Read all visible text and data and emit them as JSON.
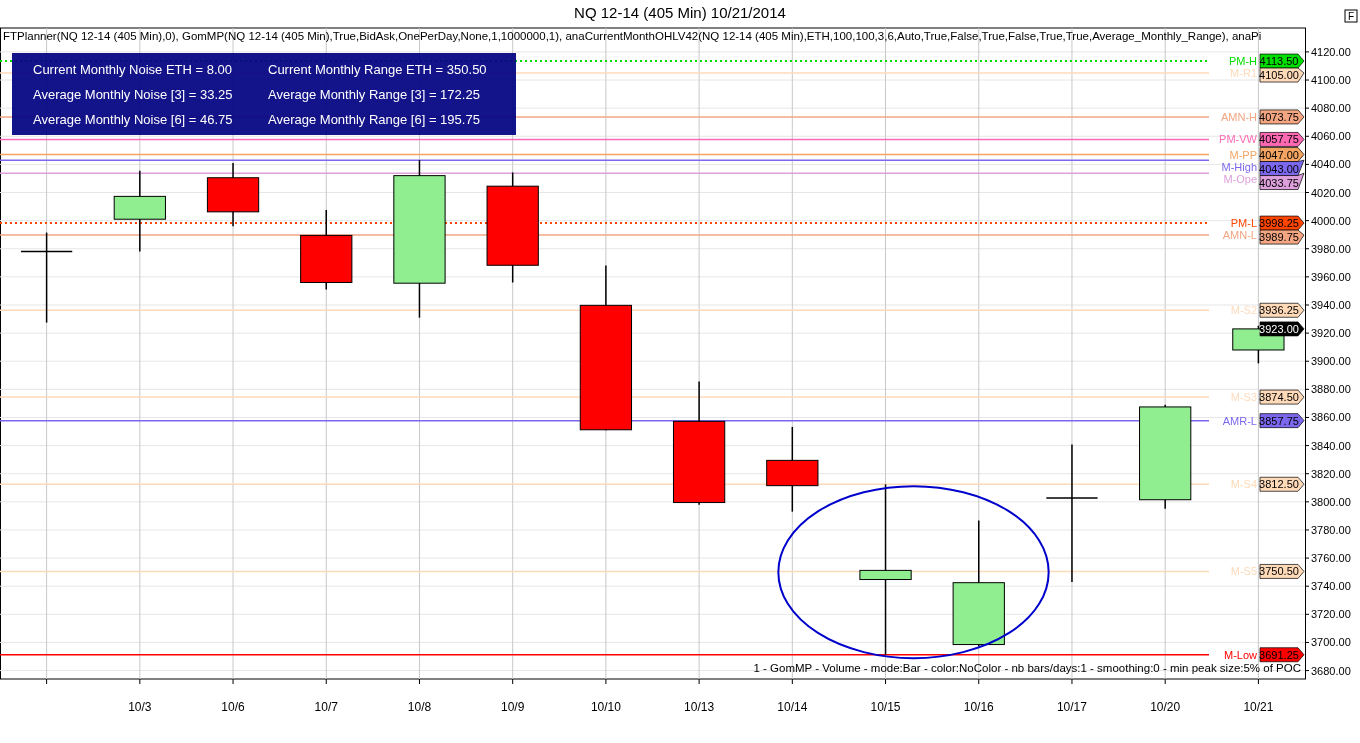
{
  "chart_data": {
    "type": "candlestick",
    "title": "NQ 12-14 (405 Min)  10/21/2014",
    "categories": [
      null,
      "10/3",
      "10/6",
      "10/7",
      "10/8",
      "10/9",
      "10/10",
      "10/13",
      "10/14",
      "10/15",
      "10/16",
      "10/17",
      "10/20",
      "10/21"
    ],
    "ohlc": [
      [
        3978,
        3991.5,
        3927.5,
        3978
      ],
      [
        4001,
        4035.5,
        3978,
        4017.25
      ],
      [
        4030.5,
        4041,
        3996,
        4006.25
      ],
      [
        3989.5,
        4007.5,
        3951,
        3956
      ],
      [
        3955.5,
        4043,
        3931,
        4032
      ],
      [
        4024.5,
        4034.25,
        3956,
        3968.25
      ],
      [
        3939.75,
        3968,
        3851,
        3851.25
      ],
      [
        3857.25,
        3885.5,
        3798,
        3799.5
      ],
      [
        3829.5,
        3853.25,
        3793,
        3811.5
      ],
      [
        3744.75,
        3812.5,
        3691.25,
        3751.25
      ],
      [
        3698.5,
        3786.75,
        3697.5,
        3742.5
      ],
      [
        3802.75,
        3840.75,
        3743,
        3802.75
      ],
      [
        3801.5,
        3869,
        3795,
        3867.5
      ],
      [
        3908,
        3925.25,
        3898.5,
        3923
      ]
    ],
    "colors": [
      "#000000",
      "#90ee90",
      "#ff0000",
      "#ff0000",
      "#90ee90",
      "#ff0000",
      "#ff0000",
      "#ff0000",
      "#ff0000",
      "#90ee90",
      "#90ee90",
      "#000000",
      "#90ee90",
      "#90ee90"
    ],
    "ylim": [
      3674,
      4137
    ],
    "yticks": [
      {
        "value": 3680,
        "label": "3680.00"
      },
      {
        "value": 3700,
        "label": "3700.00"
      },
      {
        "value": 3720,
        "label": "3720.00"
      },
      {
        "value": 3740,
        "label": "3740.00"
      },
      {
        "value": 3760,
        "label": "3760.00"
      },
      {
        "value": 3780,
        "label": "3780.00"
      },
      {
        "value": 3800,
        "label": "3800.00"
      },
      {
        "value": 3820,
        "label": "3820.00"
      },
      {
        "value": 3840,
        "label": "3840.00"
      },
      {
        "value": 3860,
        "label": "3860.00"
      },
      {
        "value": 3880,
        "label": "3880.00"
      },
      {
        "value": 3900,
        "label": "3900.00"
      },
      {
        "value": 3920,
        "label": "3920.00"
      },
      {
        "value": 3940,
        "label": "3940.00"
      },
      {
        "value": 3960,
        "label": "3960.00"
      },
      {
        "value": 3980,
        "label": "3980.00"
      },
      {
        "value": 4000,
        "label": "4000.00"
      },
      {
        "value": 4020,
        "label": "4020.00"
      },
      {
        "value": 4040,
        "label": "4040.00"
      },
      {
        "value": 4060,
        "label": "4060.00"
      },
      {
        "value": 4080,
        "label": "4080.00"
      },
      {
        "value": 4100,
        "label": "4100.00"
      },
      {
        "value": 4120,
        "label": "4120.00"
      }
    ],
    "grid": true,
    "ref_lines": [
      {
        "axis": "y",
        "value": 4113.5,
        "label": "PM-H",
        "color": "#00dd00",
        "line_style": "dotted"
      },
      {
        "axis": "y",
        "value": 4105,
        "label": "M-R1",
        "color": "#ffdab9",
        "line_style": "solid"
      },
      {
        "axis": "y",
        "value": 4073.75,
        "label": "AMN-H",
        "color": "#f4a582",
        "line_style": "solid"
      },
      {
        "axis": "y",
        "value": 4057.75,
        "label": "PM-VW",
        "color": "#ff69b4",
        "line_style": "solid"
      },
      {
        "axis": "y",
        "value": 4047,
        "label": "M-PP",
        "color": "#f4a460",
        "line_style": "solid"
      },
      {
        "axis": "y",
        "value": 4043,
        "label": "M-High",
        "color": "#7b68ee",
        "line_style": "solid"
      },
      {
        "axis": "y",
        "value": 4033.75,
        "label": "M-Ope",
        "color": "#dda0dd",
        "line_style": "solid"
      },
      {
        "axis": "y",
        "value": 3998.25,
        "label": "PM-L",
        "color": "#ff4500",
        "line_style": "dotted"
      },
      {
        "axis": "y",
        "value": 3989.75,
        "label": "AMN-L",
        "color": "#f4a582",
        "line_style": "solid"
      },
      {
        "axis": "y",
        "value": 3936.25,
        "label": "M-S2",
        "color": "#ffdab9",
        "line_style": "solid"
      },
      {
        "axis": "y",
        "value": 3874.5,
        "label": "M-S3",
        "color": "#ffdab9",
        "line_style": "solid"
      },
      {
        "axis": "y",
        "value": 3857.75,
        "label": "AMR-L",
        "color": "#7b68ee",
        "line_style": "solid"
      },
      {
        "axis": "y",
        "value": 3812.5,
        "label": "M-S4",
        "color": "#ffdab9",
        "line_style": "solid"
      },
      {
        "axis": "y",
        "value": 3750.5,
        "label": "M-S5",
        "color": "#ffdab9",
        "line_style": "solid"
      },
      {
        "axis": "y",
        "value": 3691.25,
        "label": "M-Low",
        "color": "#ff0000",
        "line_style": "solid"
      }
    ],
    "annotations": [
      "FTPlanner(NQ 12-14 (405 Min),0), GomMP(NQ 12-14 (405 Min),True,BidAsk,OnePerDay,None,1,1000000,1), anaCurrentMonthOHLV42(NQ 12-14 (405 Min),ETH,100,100,3,6,Auto,True,False,True,False,True,True,Average_Monthly_Range), anaPi",
      "Current Monthly Noise ETH = 8.00",
      "Current Monthly Range ETH = 350.50",
      "Average Monthly Noise [3] = 33.25",
      "Average Monthly Range [3] = 172.25",
      "Average Monthly Noise [6] = 46.75",
      "Average Monthly Range [6] = 195.75",
      "1 - GomMP - Volume - mode:Bar - color:NoColor - nb bars/days:1 - smoothing:0 - min peak size:5% of POC",
      "F",
      "3923.00",
      "4113.50",
      "4105.00",
      "4073.75",
      "4057.75",
      "4047.00",
      "4043.00",
      "4033.75",
      "3998.25",
      "3989.75",
      "3936.25",
      "3874.50",
      "3857.75",
      "3812.50",
      "3750.50",
      "3691.25"
    ]
  }
}
